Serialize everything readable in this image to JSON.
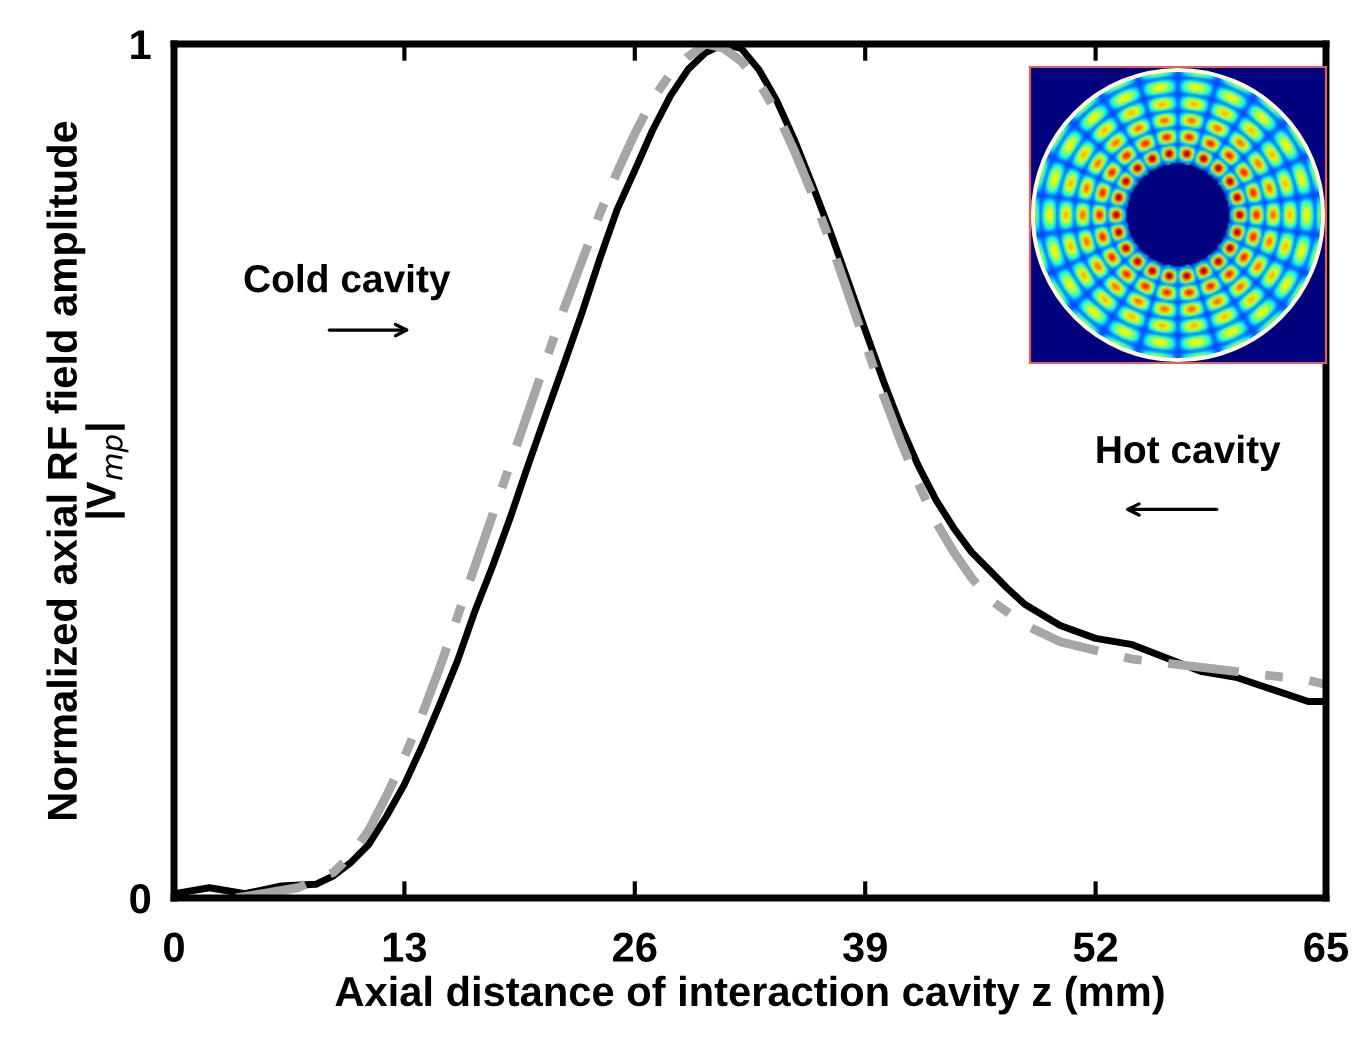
{
  "chart_data": {
    "type": "line",
    "xlabel": "Axial distance of interaction cavity z (mm)",
    "ylabel": "Normalized axial RF field amplitude\n|V$_{mp}$|",
    "xlim": [
      0,
      65
    ],
    "ylim": [
      0,
      1
    ],
    "xticks": [
      0,
      13,
      26,
      39,
      52,
      65
    ],
    "yticks": [
      0,
      1
    ],
    "grid": false,
    "legend": false,
    "marker": "none",
    "series": [
      {
        "color": "#000000",
        "line_style": "solid",
        "x": [
          0,
          2,
          4,
          6,
          8,
          9,
          10,
          11,
          12,
          13,
          14,
          15,
          16,
          17,
          18,
          19,
          20,
          21,
          22,
          23,
          24,
          25,
          26,
          27,
          28,
          29,
          30,
          31,
          32,
          33,
          34,
          35,
          36,
          37,
          38,
          39,
          40,
          41,
          42,
          43,
          44,
          45,
          46,
          47,
          48,
          50,
          52,
          54,
          56,
          58,
          60,
          62,
          64,
          65
        ],
        "values": [
          0.005,
          0.012,
          0.005,
          0.014,
          0.016,
          0.026,
          0.042,
          0.063,
          0.096,
          0.133,
          0.178,
          0.227,
          0.278,
          0.337,
          0.39,
          0.447,
          0.508,
          0.567,
          0.625,
          0.684,
          0.747,
          0.806,
          0.852,
          0.899,
          0.939,
          0.97,
          0.99,
          1.0,
          0.995,
          0.97,
          0.934,
          0.888,
          0.836,
          0.782,
          0.724,
          0.665,
          0.607,
          0.553,
          0.506,
          0.466,
          0.433,
          0.405,
          0.384,
          0.363,
          0.344,
          0.319,
          0.304,
          0.297,
          0.281,
          0.265,
          0.258,
          0.244,
          0.23,
          0.23
        ]
      },
      {
        "color": "#a6a6a6",
        "line_style": "dashdot",
        "x": [
          3.5,
          5,
          7,
          9,
          10,
          11,
          12,
          13,
          14,
          15,
          16,
          17,
          18,
          19,
          20,
          21,
          22,
          23,
          24,
          25,
          26,
          27,
          28,
          29,
          30,
          31,
          32,
          33,
          34,
          35,
          36,
          37,
          38,
          39,
          40,
          41,
          42,
          43,
          44,
          45,
          46,
          47,
          48,
          50,
          52,
          54,
          56,
          58,
          60,
          62,
          64,
          65
        ],
        "values": [
          0.0,
          0.005,
          0.012,
          0.03,
          0.05,
          0.08,
          0.12,
          0.165,
          0.215,
          0.27,
          0.33,
          0.39,
          0.45,
          0.51,
          0.57,
          0.63,
          0.69,
          0.745,
          0.8,
          0.85,
          0.895,
          0.935,
          0.965,
          0.985,
          1.0,
          0.995,
          0.98,
          0.955,
          0.92,
          0.875,
          0.825,
          0.77,
          0.71,
          0.65,
          0.59,
          0.535,
          0.485,
          0.44,
          0.405,
          0.375,
          0.35,
          0.335,
          0.32,
          0.3,
          0.29,
          0.28,
          0.275,
          0.27,
          0.265,
          0.26,
          0.255,
          0.25
        ]
      }
    ],
    "annotations": [
      "Cold cavity",
      "Hot cavity"
    ]
  }
}
